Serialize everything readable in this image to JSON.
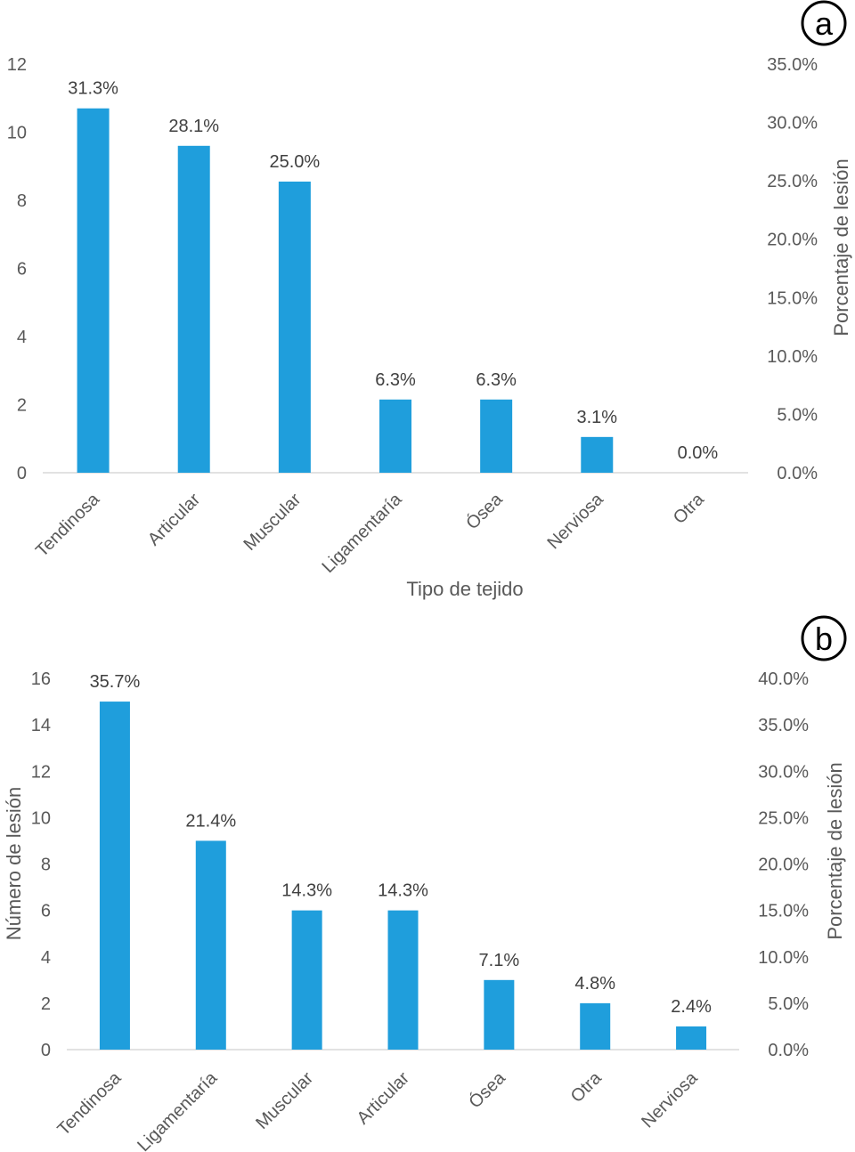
{
  "chart_data": [
    {
      "type": "bar",
      "panel_label": "a",
      "categories": [
        "Tendinosa",
        "Articular",
        "Muscular",
        "Ligamentaría",
        "Ósea",
        "Nerviosa",
        "Otra"
      ],
      "values": [
        10.7,
        9.6,
        8.55,
        2.15,
        2.15,
        1.05,
        0
      ],
      "data_labels": [
        "31.3%",
        "28.1%",
        "25.0%",
        "6.3%",
        "6.3%",
        "3.1%",
        "0.0%"
      ],
      "xlabel": "Tipo de tejido",
      "ylabel": "",
      "y2label": "Porcentaje de lesión",
      "ylim": [
        0,
        12
      ],
      "y_ticks": [
        "0",
        "2",
        "4",
        "6",
        "8",
        "10",
        "12"
      ],
      "y2_ticks": [
        "0.0%",
        "5.0%",
        "10.0%",
        "15.0%",
        "20.0%",
        "25.0%",
        "30.0%",
        "35.0%"
      ],
      "bar_color": "#1f9edc",
      "grid": false
    },
    {
      "type": "bar",
      "panel_label": "b",
      "categories": [
        "Tendinosa",
        "Ligamentaría",
        "Muscular",
        "Articular",
        "Ósea",
        "Otra",
        "Nerviosa"
      ],
      "values": [
        15,
        9,
        6,
        6,
        3,
        2,
        1
      ],
      "data_labels": [
        "35.7%",
        "21.4%",
        "14.3%",
        "14.3%",
        "7.1%",
        "4.8%",
        "2.4%"
      ],
      "xlabel": "",
      "ylabel": "Número de lesión",
      "y2label": "Porcentaje de lesión",
      "ylim": [
        0,
        16
      ],
      "y_ticks": [
        "0",
        "2",
        "4",
        "6",
        "8",
        "10",
        "12",
        "14",
        "16"
      ],
      "y2_ticks": [
        "0.0%",
        "5.0%",
        "10.0%",
        "15.0%",
        "20.0%",
        "25.0%",
        "30.0%",
        "35.0%",
        "40.0%"
      ],
      "bar_color": "#1f9edc",
      "grid": false
    }
  ]
}
